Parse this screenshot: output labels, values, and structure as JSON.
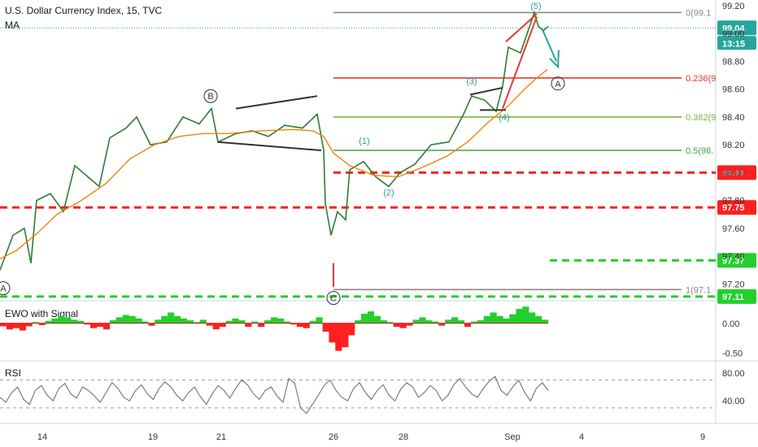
{
  "header": {
    "symbol": "U.S. Dollar Currency Index, 15, TVC",
    "indicator": "MA"
  },
  "price_tags": {
    "last": "99.04",
    "countdown": "13:15"
  },
  "chart_data": [
    {
      "type": "line",
      "title": "U.S. Dollar Currency Index, 15, TVC",
      "x_ticks": [
        "14",
        "19",
        "21",
        "26",
        "28",
        "Sep",
        "4",
        "9"
      ],
      "y_ticks": [
        "99.20",
        "99.00",
        "98.80",
        "98.60",
        "98.40",
        "98.20",
        "98.00",
        "97.80",
        "97.60",
        "97.40",
        "97.20"
      ],
      "ylim": [
        97.08,
        99.24
      ],
      "series": [
        {
          "name": "Price",
          "color": "#2e7d32",
          "points": [
            [
              0,
              97.3
            ],
            [
              16,
              97.55
            ],
            [
              30,
              97.6
            ],
            [
              38,
              97.35
            ],
            [
              45,
              97.8
            ],
            [
              62,
              97.85
            ],
            [
              78,
              97.72
            ],
            [
              92,
              98.05
            ],
            [
              108,
              97.97
            ],
            [
              122,
              97.9
            ],
            [
              135,
              98.25
            ],
            [
              155,
              98.32
            ],
            [
              168,
              98.4
            ],
            [
              185,
              98.2
            ],
            [
              205,
              98.22
            ],
            [
              225,
              98.4
            ],
            [
              245,
              98.35
            ],
            [
              260,
              98.46
            ],
            [
              268,
              98.22
            ],
            [
              290,
              98.28
            ],
            [
              310,
              98.3
            ],
            [
              330,
              98.26
            ],
            [
              350,
              98.34
            ],
            [
              372,
              98.32
            ],
            [
              390,
              98.42
            ],
            [
              398,
              98.16
            ],
            [
              400,
              97.78
            ],
            [
              407,
              97.55
            ],
            [
              415,
              97.72
            ],
            [
              425,
              97.66
            ],
            [
              430,
              98.02
            ],
            [
              447,
              98.08
            ],
            [
              462,
              97.97
            ],
            [
              478,
              97.9
            ],
            [
              492,
              98.0
            ],
            [
              510,
              98.06
            ],
            [
              530,
              98.2
            ],
            [
              552,
              98.22
            ],
            [
              570,
              98.42
            ],
            [
              580,
              98.55
            ],
            [
              596,
              98.52
            ],
            [
              610,
              98.44
            ],
            [
              618,
              98.62
            ],
            [
              625,
              98.9
            ],
            [
              640,
              98.86
            ],
            [
              657,
              99.15
            ],
            [
              662,
              99.05
            ],
            [
              668,
              99.02
            ],
            [
              674,
              99.05
            ]
          ]
        },
        {
          "name": "MA",
          "color": "#f57c00",
          "points": [
            [
              0,
              97.38
            ],
            [
              20,
              97.44
            ],
            [
              45,
              97.56
            ],
            [
              70,
              97.7
            ],
            [
              100,
              97.8
            ],
            [
              130,
              97.92
            ],
            [
              160,
              98.1
            ],
            [
              190,
              98.2
            ],
            [
              220,
              98.26
            ],
            [
              250,
              98.28
            ],
            [
              280,
              98.28
            ],
            [
              320,
              98.3
            ],
            [
              360,
              98.31
            ],
            [
              385,
              98.3
            ],
            [
              398,
              98.26
            ],
            [
              410,
              98.14
            ],
            [
              430,
              98.05
            ],
            [
              460,
              97.98
            ],
            [
              490,
              97.97
            ],
            [
              520,
              98.04
            ],
            [
              550,
              98.12
            ],
            [
              575,
              98.22
            ],
            [
              600,
              98.36
            ],
            [
              625,
              98.48
            ],
            [
              645,
              98.6
            ],
            [
              660,
              98.68
            ],
            [
              673,
              98.74
            ]
          ]
        }
      ],
      "levels": [
        {
          "value": 99.15,
          "label": "0(99.1",
          "color": "#888888"
        },
        {
          "value": 98.68,
          "label": "0.236(9",
          "color": "#e53935"
        },
        {
          "value": 98.4,
          "label": "0.382(9",
          "color": "#7cb342"
        },
        {
          "value": 98.16,
          "label": "0.5(98.",
          "color": "#43a047"
        },
        {
          "value": 97.16,
          "label": "1(97.1",
          "color": "#888888"
        }
      ],
      "support_resistance": [
        {
          "value": 98.0,
          "label": "98.00",
          "color": "#ff1f1f"
        },
        {
          "value": 97.75,
          "label": "97.75",
          "color": "#ff1f1f"
        },
        {
          "value": 97.37,
          "label": "97.37",
          "color": "#22d02c"
        },
        {
          "value": 97.11,
          "label": "97.11",
          "color": "#22d02c"
        }
      ],
      "wave_labels": [
        "B",
        "(1)",
        "(2)",
        "(3)",
        "(4)",
        "(5)",
        "A",
        "C",
        "A"
      ]
    },
    {
      "type": "bar",
      "title": "EWO with Signal",
      "y_ticks": [
        "0.00",
        "-0.50"
      ],
      "ylim": [
        -0.6,
        0.35
      ],
      "colors": {
        "positive": "#22d02c",
        "negative": "#ff1f1f"
      },
      "values": [
        -0.05,
        -0.1,
        -0.08,
        -0.12,
        -0.05,
        0.02,
        -0.03,
        0.04,
        0.08,
        0.12,
        0.1,
        0.06,
        0.04,
        -0.02,
        -0.08,
        -0.06,
        -0.1,
        0.05,
        0.1,
        0.14,
        0.12,
        0.08,
        0.03,
        -0.04,
        0.06,
        0.12,
        0.18,
        0.12,
        0.08,
        0.05,
        0.02,
        0.06,
        -0.04,
        -0.1,
        -0.06,
        0.04,
        0.08,
        0.05,
        -0.06,
        0.03,
        -0.06,
        0.05,
        0.1,
        0.08,
        0.03,
        -0.02,
        -0.06,
        -0.08,
        0.04,
        0.1,
        -0.14,
        -0.32,
        -0.46,
        -0.4,
        -0.2,
        0.05,
        0.16,
        0.2,
        0.12,
        0.05,
        0.02,
        -0.06,
        -0.08,
        -0.04,
        0.06,
        0.1,
        0.05,
        0.03,
        -0.04,
        0.06,
        0.1,
        0.05,
        -0.06,
        0.03,
        0.05,
        0.12,
        0.18,
        0.12,
        0.08,
        0.15,
        0.24,
        0.28,
        0.18,
        0.12,
        0.06
      ]
    },
    {
      "type": "line",
      "title": "RSI",
      "y_ticks": [
        "80.00",
        "40.00"
      ],
      "ylim": [
        10,
        95
      ],
      "levels": [
        {
          "value": 70
        },
        {
          "value": 30
        }
      ],
      "series": [
        {
          "name": "RSI",
          "color": "#666666",
          "values": [
            45,
            38,
            52,
            60,
            42,
            35,
            55,
            62,
            48,
            40,
            58,
            65,
            50,
            44,
            60,
            55,
            47,
            38,
            52,
            66,
            58,
            45,
            40,
            55,
            63,
            50,
            42,
            58,
            67,
            60,
            48,
            40,
            52,
            60,
            46,
            35,
            50,
            62,
            55,
            44,
            58,
            70,
            63,
            50,
            42,
            55,
            60,
            47,
            38,
            72,
            65,
            30,
            22,
            35,
            48,
            62,
            70,
            55,
            45,
            40,
            58,
            66,
            52,
            42,
            55,
            63,
            48,
            40,
            57,
            66,
            60,
            45,
            52,
            62,
            55,
            40,
            48,
            63,
            72,
            60,
            50,
            45,
            58,
            68,
            75,
            55,
            48,
            60,
            70,
            52,
            40,
            58,
            66,
            55
          ]
        }
      ]
    }
  ]
}
